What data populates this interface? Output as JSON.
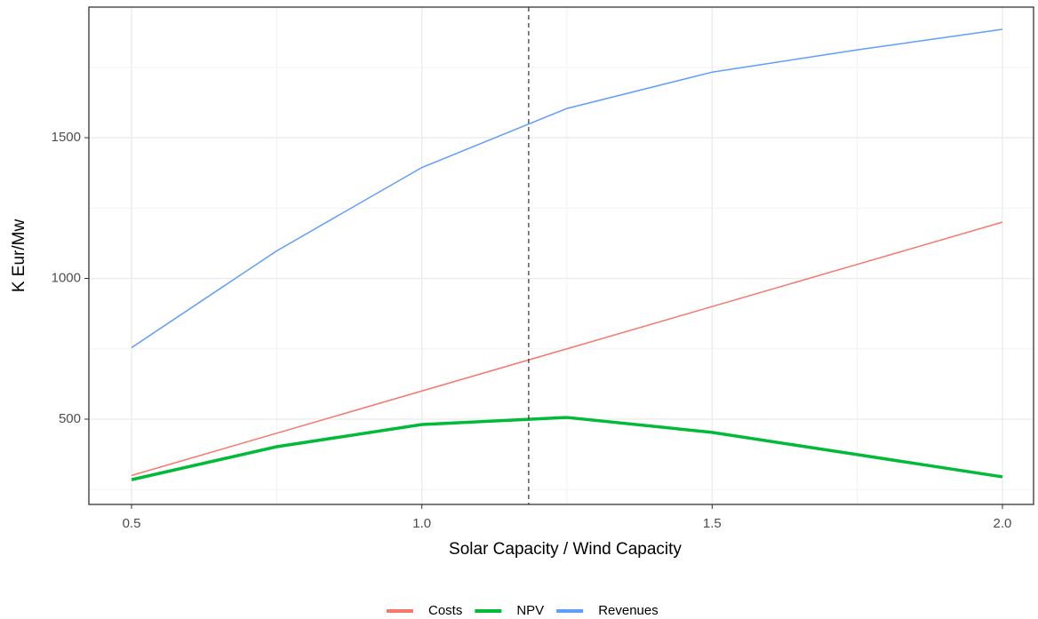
{
  "chart_data": {
    "type": "line",
    "x_label": "Solar Capacity / Wind Capacity",
    "y_label": "K Eur/Mw",
    "x": [
      0.5,
      0.75,
      1.0,
      1.25,
      1.5,
      1.75,
      2.0
    ],
    "series": [
      {
        "name": "Costs",
        "color": "#f8766d",
        "width": 1.5,
        "values": [
          300,
          450,
          600,
          750,
          900,
          1050,
          1200
        ]
      },
      {
        "name": "NPV",
        "color": "#00ba38",
        "width": 3.5,
        "values": [
          285,
          402,
          481,
          506,
          453,
          374,
          295
        ]
      },
      {
        "name": "Revenues",
        "color": "#619cff",
        "width": 1.5,
        "values": [
          754,
          1098,
          1394,
          1604,
          1733,
          1812,
          1885
        ]
      }
    ],
    "vline": 1.184,
    "xlim": [
      0.4265,
      2.0536
    ],
    "xticks": [
      0.5,
      {
        "value": 1.0,
        "label": "1.0"
      },
      1.5,
      {
        "value": 2.0,
        "label": "2.0"
      }
    ],
    "ylim": [
      197,
      1964
    ],
    "yticks": [
      500,
      1000,
      1500
    ],
    "grid": true,
    "minor_grid": true,
    "legend": "bottom"
  }
}
